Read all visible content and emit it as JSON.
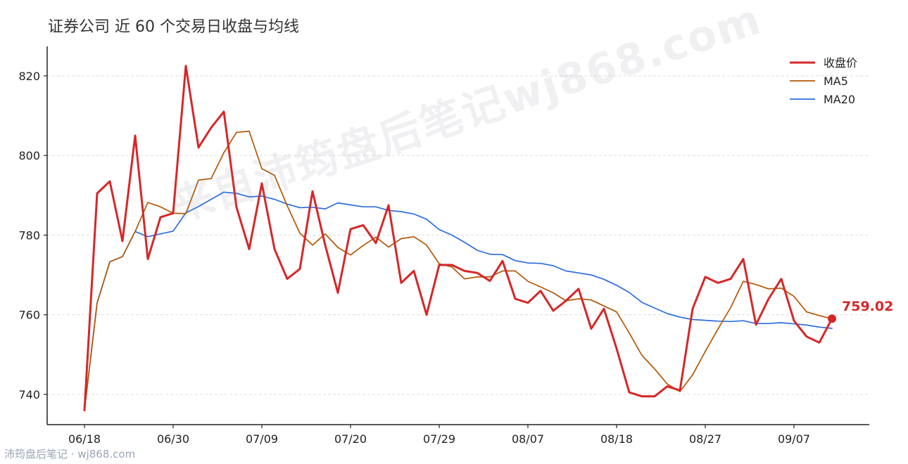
{
  "chart_data": {
    "type": "line",
    "title": "证券公司 近 60 个交易日收盘与均线",
    "xlabel": "",
    "ylabel": "",
    "x_tick_labels": [
      "06/18",
      "06/30",
      "07/09",
      "07/20",
      "07/29",
      "08/07",
      "08/18",
      "08/27",
      "09/07"
    ],
    "x_tick_indices": [
      0,
      7,
      14,
      21,
      28,
      35,
      42,
      49,
      56
    ],
    "y_ticks": [
      740,
      760,
      780,
      800,
      820
    ],
    "ylim": [
      732.4,
      827.4
    ],
    "grid": "y-dashed",
    "legend_position": "top-right",
    "series": [
      {
        "name": "收盘价",
        "color": "#d62728",
        "values": [
          736.0,
          790.5,
          793.5,
          778.5,
          805.0,
          774.0,
          784.5,
          785.5,
          822.5,
          802.0,
          807.0,
          811.0,
          787.0,
          776.5,
          793.0,
          776.5,
          769.0,
          771.5,
          791.0,
          777.5,
          765.5,
          781.5,
          782.5,
          778.0,
          787.5,
          768.0,
          771.0,
          760.0,
          772.5,
          772.5,
          771.0,
          770.5,
          768.5,
          773.5,
          764.0,
          763.0,
          766.0,
          761.0,
          763.5,
          766.5,
          756.5,
          761.5,
          751.5,
          740.5,
          739.5,
          739.5,
          742.0,
          741.0,
          761.5,
          769.5,
          768.0,
          769.0,
          774.0,
          757.5,
          764.0,
          769.0,
          758.5,
          754.5,
          753.0,
          759.02
        ]
      },
      {
        "name": "MA5",
        "color": "#b35806",
        "values": [
          736.0,
          763.0,
          773.3,
          774.6,
          780.9,
          788.2,
          787.1,
          785.5,
          785.4,
          793.8,
          794.2,
          800.7,
          805.8,
          806.1,
          796.7,
          795.0,
          787.4,
          780.5,
          777.5,
          780.3,
          776.9,
          775.0,
          777.4,
          779.5,
          777.0,
          779.1,
          779.6,
          777.5,
          772.8,
          772.0,
          769.0,
          769.5,
          769.5,
          771.0,
          771.0,
          768.4,
          767.0,
          765.5,
          763.5,
          764.0,
          763.7,
          762.2,
          760.7,
          755.4,
          749.8,
          746.4,
          742.6,
          740.7,
          744.9,
          750.8,
          756.4,
          761.8,
          768.4,
          767.6,
          766.5,
          766.7,
          764.6,
          760.7,
          759.8,
          759.0
        ]
      },
      {
        "name": "MA20",
        "color": "#2b6fdd",
        "values": [
          736.0,
          763.0,
          773.3,
          774.6,
          780.9,
          779.6,
          780.3,
          781.0,
          785.6,
          787.2,
          789.0,
          790.8,
          790.5,
          789.6,
          789.8,
          789.0,
          787.8,
          786.9,
          787.0,
          786.6,
          788.1,
          787.6,
          787.1,
          787.1,
          786.2,
          785.9,
          785.3,
          784.0,
          781.4,
          780.0,
          778.2,
          776.2,
          775.2,
          775.1,
          773.6,
          773.0,
          772.9,
          772.3,
          771.0,
          770.5,
          770.0,
          768.9,
          767.4,
          765.6,
          763.1,
          761.7,
          760.3,
          759.4,
          758.8,
          758.6,
          758.4,
          758.3,
          758.5,
          757.8,
          757.8,
          758.0,
          757.7,
          757.4,
          756.9,
          756.6
        ]
      }
    ],
    "last_point_label": "759.02"
  },
  "watermark": "来自沛筠盘后笔记wj868.com",
  "source_note": "沛筠盘后笔记 · wj868.com"
}
